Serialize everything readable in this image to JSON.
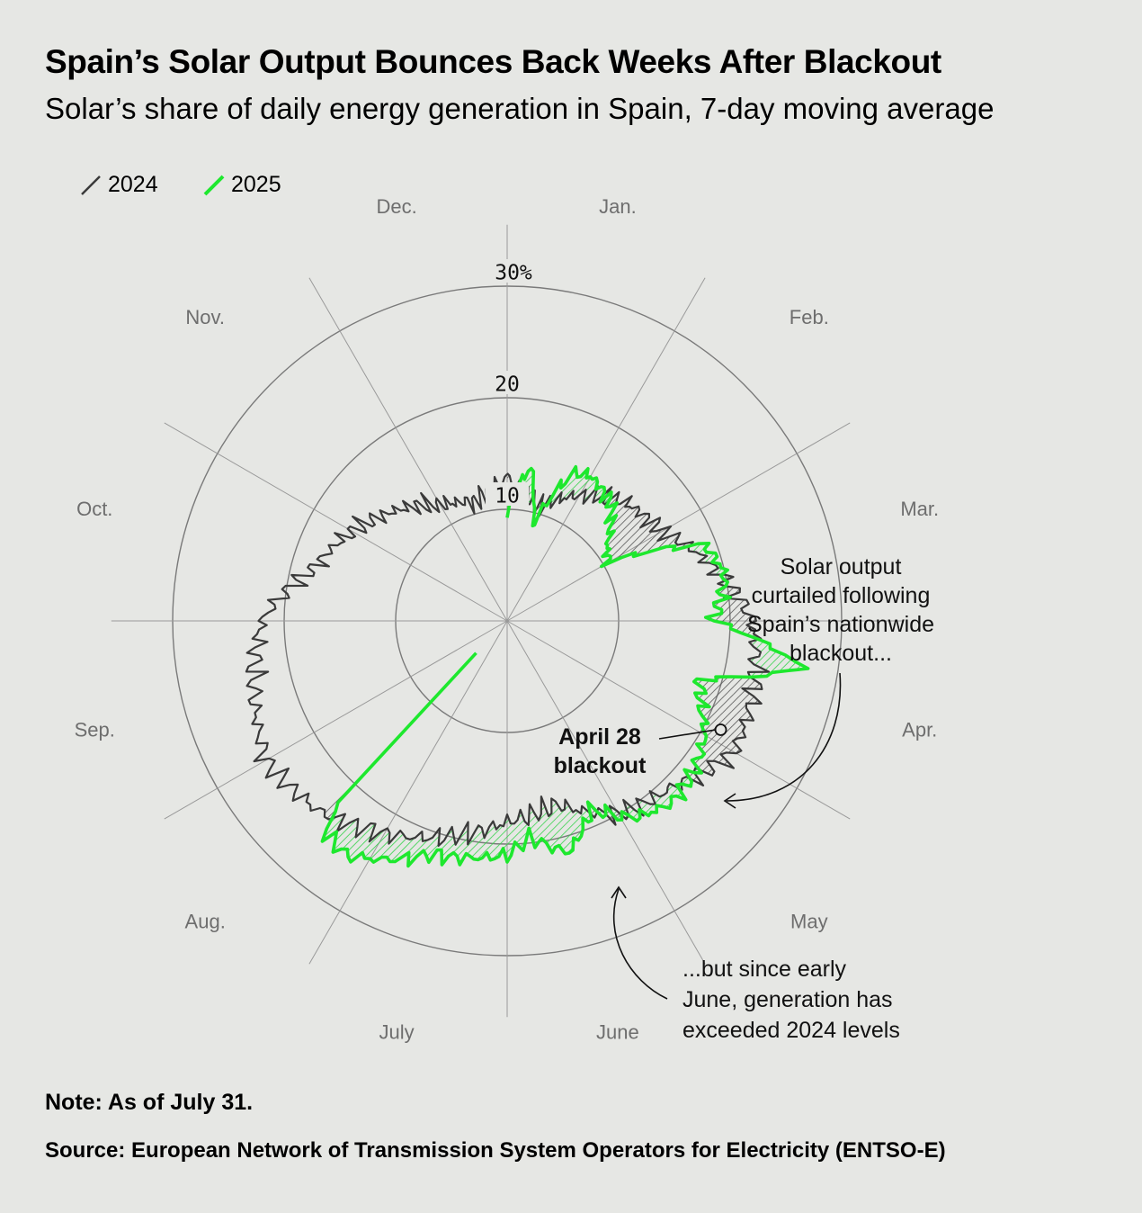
{
  "header": {
    "title": "Spain’s Solar Output Bounces Back Weeks After Blackout",
    "subtitle": "Solar’s share of daily energy generation in Spain, 7-day moving average"
  },
  "footer": {
    "note": "Note: As of July 31.",
    "source": "Source: European Network of Transmission System Operators for Electricity (ENTSO-E)"
  },
  "colors": {
    "background": "#e6e7e4",
    "series_2024": "#3a3a3a",
    "series_2025": "#1ee82e",
    "hatch_2025_higher": "#34d24a",
    "hatch_2024_higher": "#555555",
    "grid": "#7a7a7a",
    "month_label": "#6e6e6e"
  },
  "chart_data": {
    "type": "radial-line",
    "r_unit": "%",
    "r_ticks": [
      10,
      20,
      "30%"
    ],
    "r_range": [
      0,
      30
    ],
    "month_labels": [
      "Jan.",
      "Feb.",
      "Mar.",
      "Apr.",
      "May",
      "June",
      "July",
      "Aug.",
      "Sep.",
      "Oct.",
      "Nov.",
      "Dec."
    ],
    "direction": "clockwise, January at top",
    "legend_position": "top-left",
    "series": [
      {
        "name": "2024",
        "color": "#3a3a3a",
        "monthly_points": [
          [
            0,
            12.8
          ],
          [
            0.5,
            10.5
          ],
          [
            1.0,
            13.0
          ],
          [
            1.5,
            15.0
          ],
          [
            2.0,
            16.0
          ],
          [
            2.5,
            19.0
          ],
          [
            3.0,
            22.0
          ],
          [
            3.5,
            23.0
          ],
          [
            4.0,
            23.5
          ],
          [
            4.5,
            21.0
          ],
          [
            5.0,
            20.0
          ],
          [
            5.5,
            17.0
          ],
          [
            6.0,
            18.0
          ],
          [
            6.5,
            20.0
          ],
          [
            7.0,
            22.0
          ],
          [
            7.5,
            24.0
          ],
          [
            8.0,
            25.0
          ],
          [
            8.5,
            23.5
          ],
          [
            9.0,
            22.0
          ],
          [
            9.5,
            18.0
          ],
          [
            10.0,
            16.0
          ],
          [
            10.5,
            14.0
          ],
          [
            11.0,
            12.0
          ],
          [
            11.5,
            11.0
          ],
          [
            12.0,
            12.8
          ]
        ]
      },
      {
        "name": "2025",
        "color": "#1ee82e",
        "monthly_points": [
          [
            0,
            10.0
          ],
          [
            0.3,
            14.0
          ],
          [
            0.5,
            9.0
          ],
          [
            0.8,
            14.5
          ],
          [
            1.0,
            15.0
          ],
          [
            1.4,
            14.0
          ],
          [
            1.8,
            11.0
          ],
          [
            2.0,
            10.5
          ],
          [
            2.3,
            19.0
          ],
          [
            2.6,
            20.0
          ],
          [
            3.0,
            18.5
          ],
          [
            3.3,
            27.0
          ],
          [
            3.55,
            18.0
          ],
          [
            3.8,
            19.0
          ],
          [
            4.0,
            20.5
          ],
          [
            4.3,
            21.5
          ],
          [
            4.6,
            22.0
          ],
          [
            4.9,
            21.0
          ],
          [
            5.2,
            18.5
          ],
          [
            5.5,
            21.5
          ],
          [
            5.8,
            19.5
          ],
          [
            6.0,
            21.0
          ],
          [
            6.3,
            21.5
          ],
          [
            6.6,
            22.0
          ],
          [
            6.9,
            24.0
          ],
          [
            7.15,
            25.5
          ],
          [
            7.35,
            25.0
          ],
          [
            7.45,
            22.0
          ]
        ]
      }
    ],
    "annotations": [
      {
        "id": "blackout",
        "lines": [
          "April 28",
          "blackout"
        ],
        "month": 3.9,
        "r": 21.5
      },
      {
        "id": "curtailed",
        "lines": [
          "Solar output",
          "curtailed following",
          "Spain’s nationwide",
          "blackout..."
        ]
      },
      {
        "id": "exceeded",
        "lines": [
          "...but since early",
          "June, generation has",
          "exceeded 2024 levels"
        ]
      }
    ]
  },
  "legend": {
    "items": [
      {
        "label": "2024",
        "color": "#3a3a3a"
      },
      {
        "label": "2025",
        "color": "#1ee82e"
      }
    ]
  }
}
